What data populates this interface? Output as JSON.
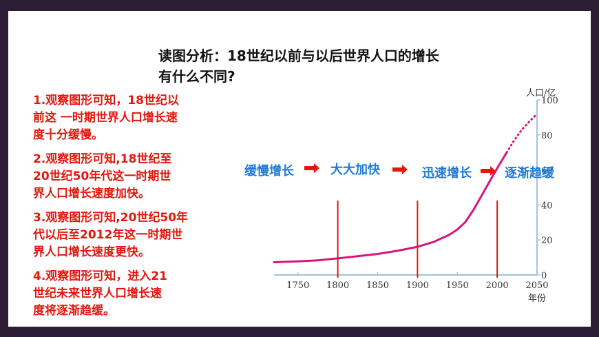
{
  "title": {
    "line1": "读图分析：18世纪以前与以后世界人口的增长",
    "line2": "有什么不同?"
  },
  "points": [
    {
      "lines": [
        "1.观察图形可知，18世纪以",
        "前这 一时期世界人口增长速",
        "度十分缓慢。"
      ]
    },
    {
      "lines": [
        "2.观察图形可知,18世纪至",
        "20世纪50年代这一时期世",
        "界人口增长速度加快。"
      ]
    },
    {
      "lines": [
        "3.观察图形可知,20世纪50年",
        "代以后至2012年这一时期世",
        "界人口增长速度更快。"
      ]
    },
    {
      "lines": [
        "4.观察图形可知，进入21",
        "世纪未来世界人口增长速",
        "度将逐渐趋缓。"
      ]
    }
  ],
  "colors": {
    "accent_red": "#e3170d",
    "curve": "#d6157a",
    "stage_label": "#1f7ad6",
    "arrow": "#e3170d",
    "axis": "#9fc3e0",
    "background_frame": "#2b1d33"
  },
  "chart_data": {
    "type": "line",
    "title": "",
    "xlabel": "年份",
    "ylabel": "人口/亿",
    "xlim": [
      1720,
      2050
    ],
    "ylim": [
      0,
      100
    ],
    "x_ticks": [
      "1750",
      "1800",
      "1850",
      "1900",
      "1950",
      "2000",
      "2050"
    ],
    "y_ticks": [
      "0",
      "20",
      "40",
      "60",
      "80",
      "100"
    ],
    "series": [
      {
        "style": "solid",
        "x": [
          1720,
          1750,
          1775,
          1800,
          1825,
          1850,
          1875,
          1900,
          1920,
          1940,
          1950,
          1960,
          1970,
          1980,
          1990,
          2000,
          2012
        ],
        "y": [
          7.3,
          7.8,
          8.4,
          9.5,
          10.7,
          12,
          13.8,
          16.1,
          18.8,
          23,
          26,
          30.2,
          37,
          45,
          53,
          61,
          70
        ]
      },
      {
        "style": "dotted",
        "x": [
          2012,
          2020,
          2030,
          2040,
          2050
        ],
        "y": [
          70,
          76,
          82.5,
          87.5,
          92
        ]
      }
    ],
    "markers": [
      1800,
      1900,
      2000
    ],
    "stages": [
      "缓慢增长",
      "大大加快",
      "迅速增长",
      "逐渐趋缓"
    ]
  }
}
